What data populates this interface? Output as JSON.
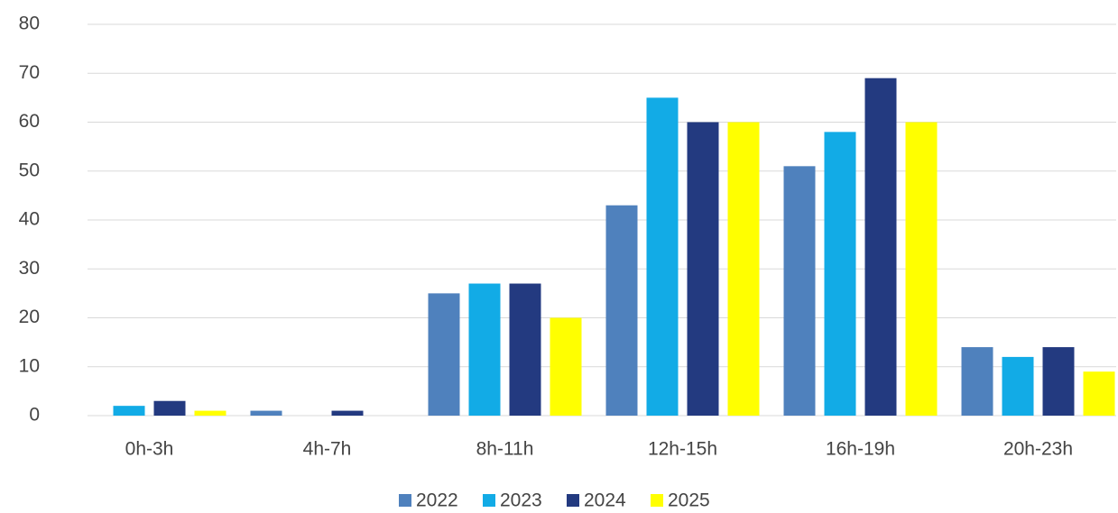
{
  "chart_data": {
    "type": "bar",
    "categories": [
      "0h-3h",
      "4h-7h",
      "8h-11h",
      "12h-15h",
      "16h-19h",
      "20h-23h"
    ],
    "series": [
      {
        "name": "2022",
        "color": "#4f81bd",
        "values": [
          0,
          1,
          25,
          43,
          51,
          14
        ]
      },
      {
        "name": "2023",
        "color": "#12abe6",
        "values": [
          2,
          0,
          27,
          65,
          58,
          12
        ]
      },
      {
        "name": "2024",
        "color": "#233a80",
        "values": [
          3,
          1,
          27,
          60,
          69,
          14
        ]
      },
      {
        "name": "2025",
        "color": "#ffff00",
        "values": [
          1,
          0,
          20,
          60,
          60,
          9
        ]
      }
    ],
    "ylim": [
      0,
      80
    ],
    "yticks": [
      0,
      10,
      20,
      30,
      40,
      50,
      60,
      70,
      80
    ],
    "grid": true,
    "legend": "bottom"
  }
}
